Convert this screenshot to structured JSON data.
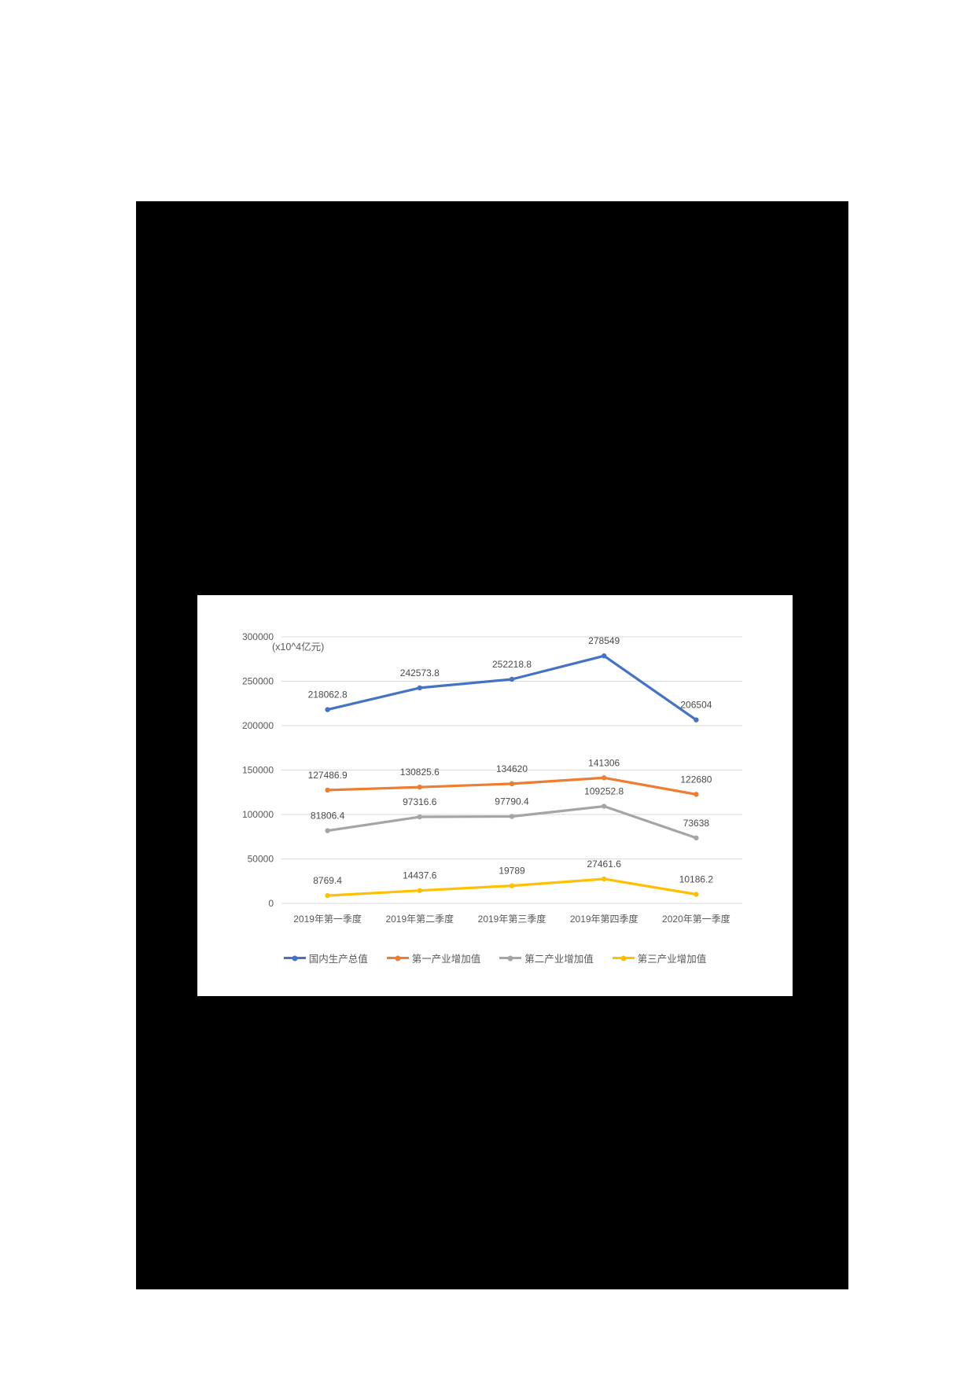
{
  "canvas": {
    "page_background": "#ffffff",
    "canvas_background": "#000000",
    "panel_background": "#ffffff"
  },
  "chart_data": {
    "type": "line",
    "title": "",
    "unit_label": "(x10^4亿元)",
    "categories": [
      "2019年第一季度",
      "2019年第二季度",
      "2019年第三季度",
      "2019年第四季度",
      "2020年第一季度"
    ],
    "series": [
      {
        "name": "国内生产总值",
        "color": "#4472C4",
        "values": [
          218062.8,
          242573.8,
          252218.8,
          278549,
          206504
        ]
      },
      {
        "name": "第一产业增加值",
        "color": "#ED7D31",
        "values": [
          127486.9,
          130825.6,
          134620,
          141306,
          122680
        ]
      },
      {
        "name": "第二产业增加值",
        "color": "#A5A5A5",
        "values": [
          81806.4,
          97316.6,
          97790.4,
          109252.8,
          73638
        ]
      },
      {
        "name": "第三产业增加值",
        "color": "#FFC000",
        "values": [
          8769.4,
          14437.6,
          19789,
          27461.6,
          10186.2
        ]
      }
    ],
    "y_ticks": [
      300000,
      250000,
      200000,
      150000,
      100000,
      50000,
      0
    ],
    "ylim": [
      0,
      300000
    ],
    "grid": true,
    "legend_position": "bottom",
    "gridline_color": "#D9D9D9",
    "axis_text_color": "#595959",
    "data_label_color": "#4a4a4a"
  }
}
